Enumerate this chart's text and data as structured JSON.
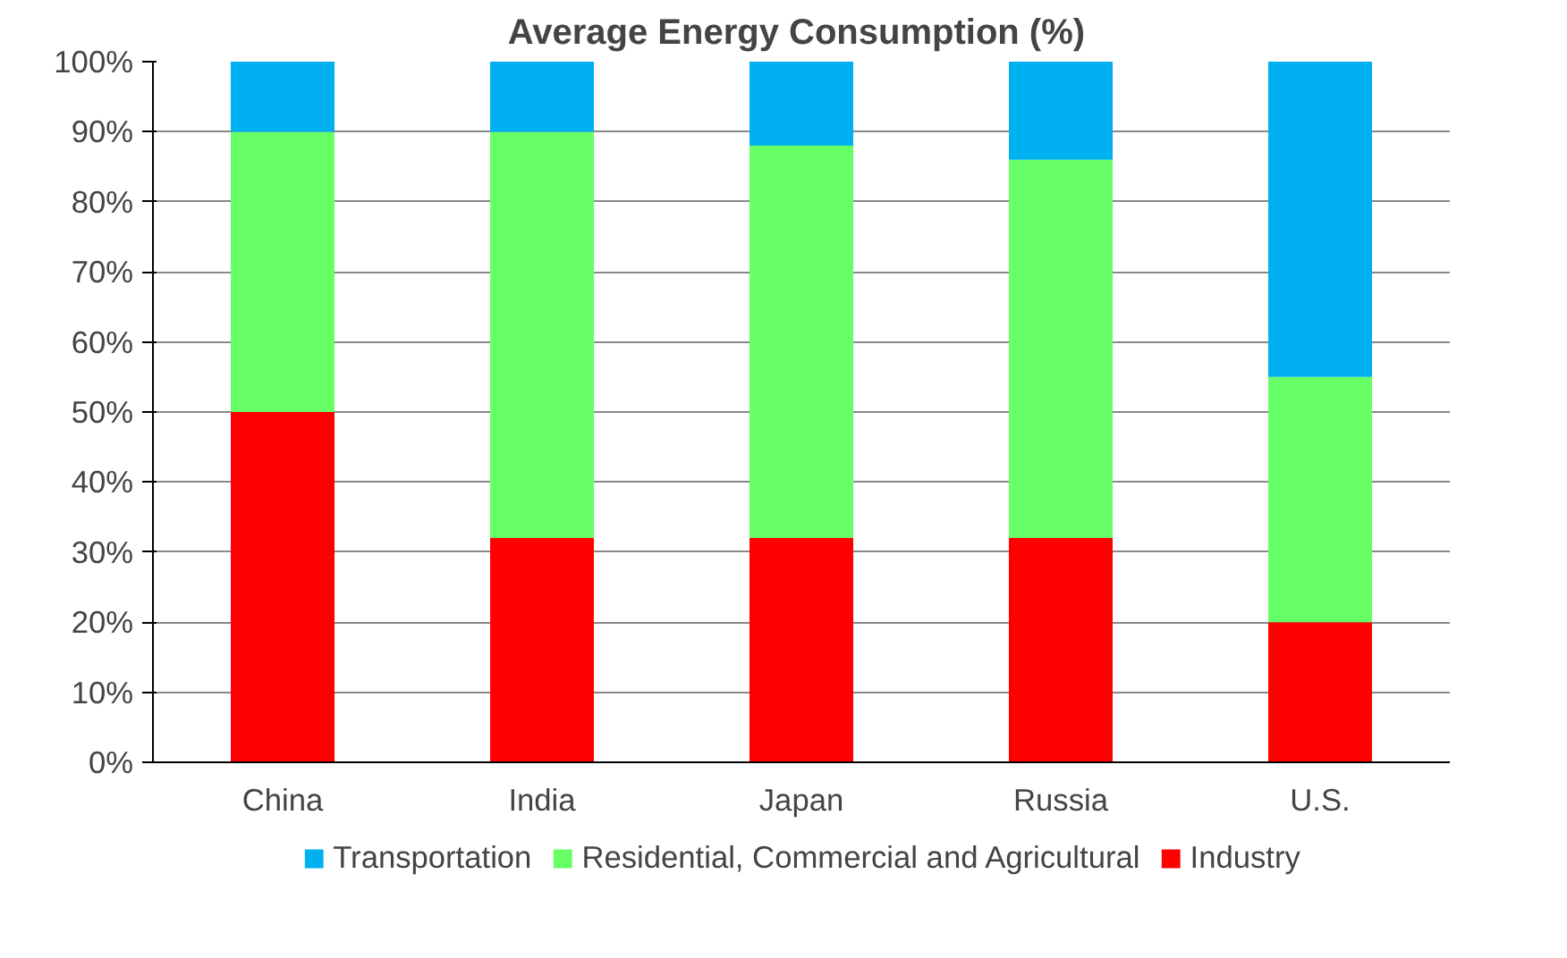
{
  "chart_data": {
    "type": "bar",
    "title": "Average Energy Consumption  (%)",
    "stacked": true,
    "categories": [
      "China",
      "India",
      "Japan",
      "Russia",
      "U.S."
    ],
    "series": [
      {
        "name": "Industry",
        "color": "#ff0000",
        "values": [
          50,
          32,
          32,
          32,
          20
        ]
      },
      {
        "name": "Residential, Commercial and Agricultural",
        "color": "#66ff66",
        "values": [
          40,
          58,
          56,
          54,
          35
        ]
      },
      {
        "name": "Transportation",
        "color": "#00b0f0",
        "values": [
          10,
          10,
          12,
          14,
          45
        ]
      }
    ],
    "ylim": [
      0,
      100
    ],
    "yticks": [
      {
        "value": 0,
        "label": "0%"
      },
      {
        "value": 10,
        "label": "10%"
      },
      {
        "value": 20,
        "label": "20%"
      },
      {
        "value": 30,
        "label": "30%"
      },
      {
        "value": 40,
        "label": "40%"
      },
      {
        "value": 50,
        "label": "50%"
      },
      {
        "value": 60,
        "label": "60%"
      },
      {
        "value": 70,
        "label": "70%"
      },
      {
        "value": 80,
        "label": "80%"
      },
      {
        "value": 90,
        "label": "90%"
      },
      {
        "value": 100,
        "label": "100%"
      }
    ],
    "grid": "y",
    "legend": "bottom"
  }
}
